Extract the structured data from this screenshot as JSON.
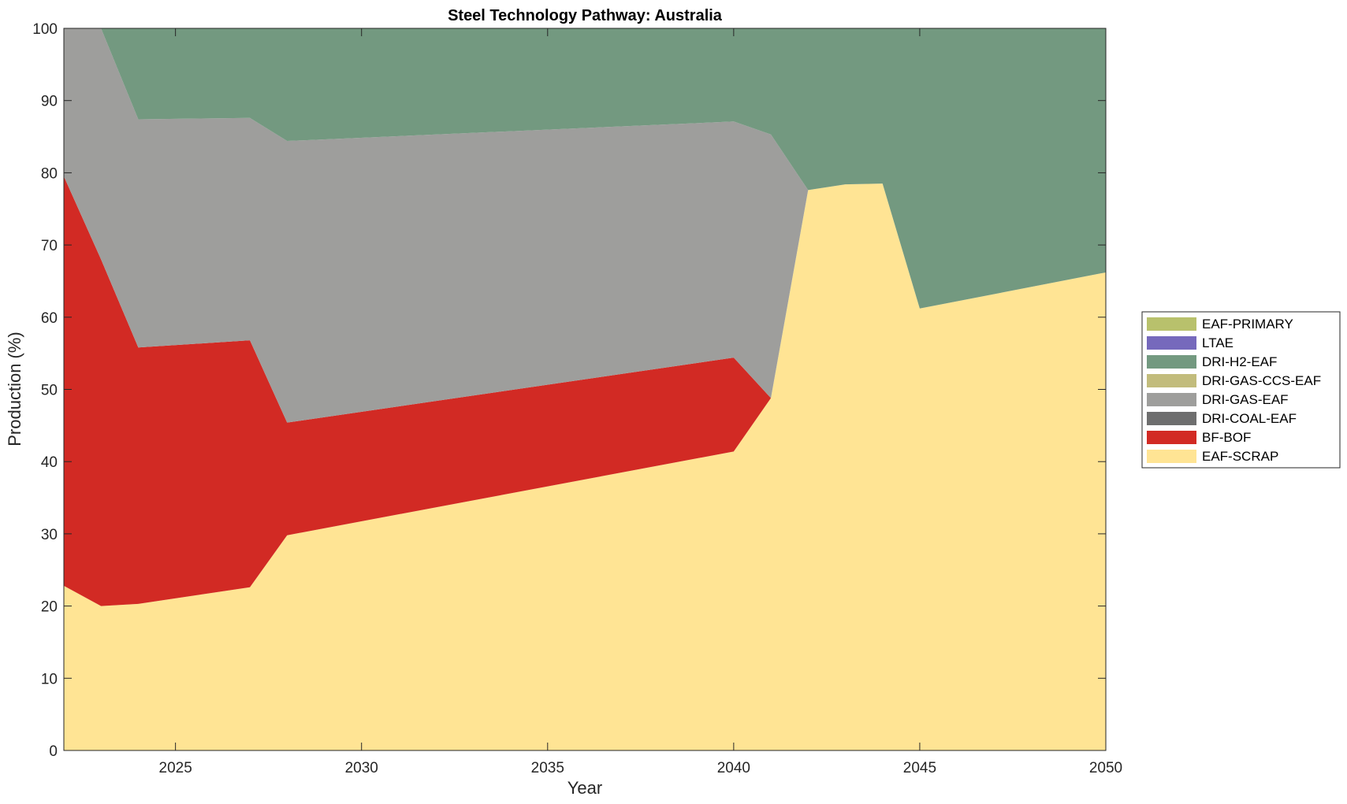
{
  "chart_data": {
    "type": "area",
    "stacked": true,
    "title": "Steel Technology Pathway: Australia",
    "xlabel": "Year",
    "ylabel": "Production (%)",
    "xlim": [
      2022,
      2050
    ],
    "ylim": [
      0,
      100
    ],
    "xticks": [
      2025,
      2030,
      2035,
      2040,
      2045,
      2050
    ],
    "yticks": [
      0,
      10,
      20,
      30,
      40,
      50,
      60,
      70,
      80,
      90,
      100
    ],
    "grid": false,
    "legend_position": "right",
    "x": [
      2022,
      2023,
      2024,
      2027,
      2028,
      2040,
      2041,
      2042,
      2043,
      2044,
      2045,
      2050
    ],
    "series": [
      {
        "name": "EAF-SCRAP",
        "color": "#FFE494",
        "values": [
          22.8,
          20.0,
          20.3,
          22.6,
          29.8,
          41.4,
          48.8,
          77.6,
          78.4,
          78.5,
          61.2,
          66.2
        ]
      },
      {
        "name": "BF-BOF",
        "color": "#D22A24",
        "values": [
          56.7,
          48.0,
          35.5,
          34.2,
          15.6,
          13.0,
          0.0,
          0.0,
          0.0,
          0.0,
          0.0,
          0.0
        ]
      },
      {
        "name": "DRI-COAL-EAF",
        "color": "#6E6E6E",
        "values": [
          0,
          0,
          0,
          0,
          0,
          0,
          0,
          0,
          0,
          0,
          0,
          0
        ]
      },
      {
        "name": "DRI-GAS-EAF",
        "color": "#9E9E9C",
        "values": [
          20.5,
          32.0,
          31.6,
          30.8,
          39.0,
          32.7,
          36.5,
          0.0,
          0.0,
          0.0,
          0.0,
          0.0
        ]
      },
      {
        "name": "DRI-GAS-CCS-EAF",
        "color": "#C2BC7C",
        "values": [
          0,
          0,
          0,
          0,
          0,
          0,
          0,
          0,
          0,
          0,
          0,
          0
        ]
      },
      {
        "name": "DRI-H2-EAF",
        "color": "#739980",
        "values": [
          0.0,
          0.0,
          12.6,
          12.4,
          15.6,
          12.9,
          14.7,
          22.4,
          21.6,
          21.5,
          38.8,
          33.8
        ]
      },
      {
        "name": "LTAE",
        "color": "#7669BC",
        "values": [
          0,
          0,
          0,
          0,
          0,
          0,
          0,
          0,
          0,
          0,
          0,
          0
        ]
      },
      {
        "name": "EAF-PRIMARY",
        "color": "#B8C16C",
        "values": [
          0,
          0,
          0,
          0,
          0,
          0,
          0,
          0,
          0,
          0,
          0,
          0
        ]
      }
    ],
    "legend_order": [
      "EAF-PRIMARY",
      "LTAE",
      "DRI-H2-EAF",
      "DRI-GAS-CCS-EAF",
      "DRI-GAS-EAF",
      "DRI-COAL-EAF",
      "BF-BOF",
      "EAF-SCRAP"
    ]
  }
}
